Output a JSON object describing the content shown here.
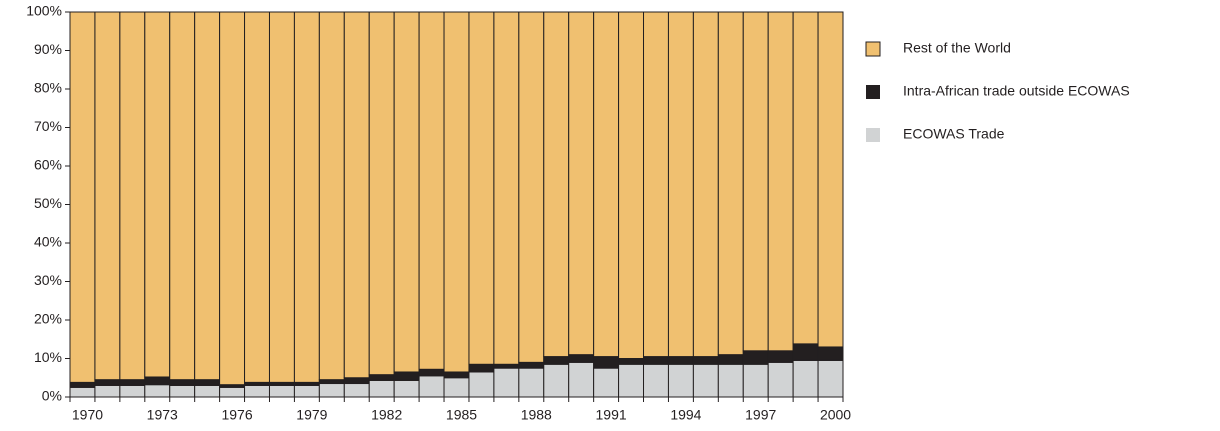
{
  "chart_data": {
    "type": "stacked_bar",
    "categories": [
      "1970",
      null,
      null,
      "1973",
      null,
      null,
      "1976",
      null,
      null,
      "1979",
      null,
      null,
      "1982",
      null,
      null,
      "1985",
      null,
      null,
      "1988",
      null,
      null,
      "1991",
      null,
      null,
      "1994",
      null,
      null,
      "1997",
      null,
      null,
      "2000"
    ],
    "series": [
      {
        "name": "ECOWAS Trade",
        "color": "#d1d3d4",
        "values": [
          2.5,
          3,
          3,
          3.2,
          3,
          3,
          2.5,
          3,
          3,
          3,
          3.5,
          3.5,
          4.3,
          4.3,
          5.5,
          5,
          6.5,
          7.5,
          7.5,
          8.5,
          9,
          7.5,
          8.5,
          8.5,
          8.5,
          8.5,
          8.5,
          8.5,
          9,
          9.5,
          9.5
        ]
      },
      {
        "name": "Intra-African trade outside ECOWAS",
        "color": "#231f20",
        "values": [
          1.3,
          1.5,
          1.5,
          2,
          1.5,
          1.5,
          0.7,
          0.8,
          0.8,
          0.8,
          1,
          1.5,
          1.5,
          2.2,
          1.7,
          1.5,
          2,
          1,
          1.5,
          2,
          2,
          3,
          1.5,
          2,
          2,
          2,
          2.5,
          3.5,
          3,
          4.3,
          3.5
        ]
      },
      {
        "name": "Rest of the World",
        "color": "#f0c070",
        "values": [
          96.2,
          95.5,
          95.5,
          94.8,
          95.5,
          95.5,
          96.8,
          96.2,
          96.2,
          96.2,
          95.5,
          95,
          94.2,
          93.5,
          92.8,
          93.5,
          91.5,
          91.5,
          91,
          89.5,
          89,
          89.5,
          90,
          89.5,
          89.5,
          89.5,
          89,
          88,
          88,
          86.2,
          87
        ]
      }
    ],
    "ylim": [
      0,
      100
    ],
    "yticks": [
      {
        "value": 0,
        "label": "0%"
      },
      {
        "value": 10,
        "label": "10%"
      },
      {
        "value": 20,
        "label": "20%"
      },
      {
        "value": 30,
        "label": "30%"
      },
      {
        "value": 40,
        "label": "40%"
      },
      {
        "value": 50,
        "label": "50%"
      },
      {
        "value": 60,
        "label": "60%"
      },
      {
        "value": 70,
        "label": "70%"
      },
      {
        "value": 80,
        "label": "80%"
      },
      {
        "value": 90,
        "label": "90%"
      },
      {
        "value": 100,
        "label": "100%"
      }
    ],
    "legend": "right"
  }
}
